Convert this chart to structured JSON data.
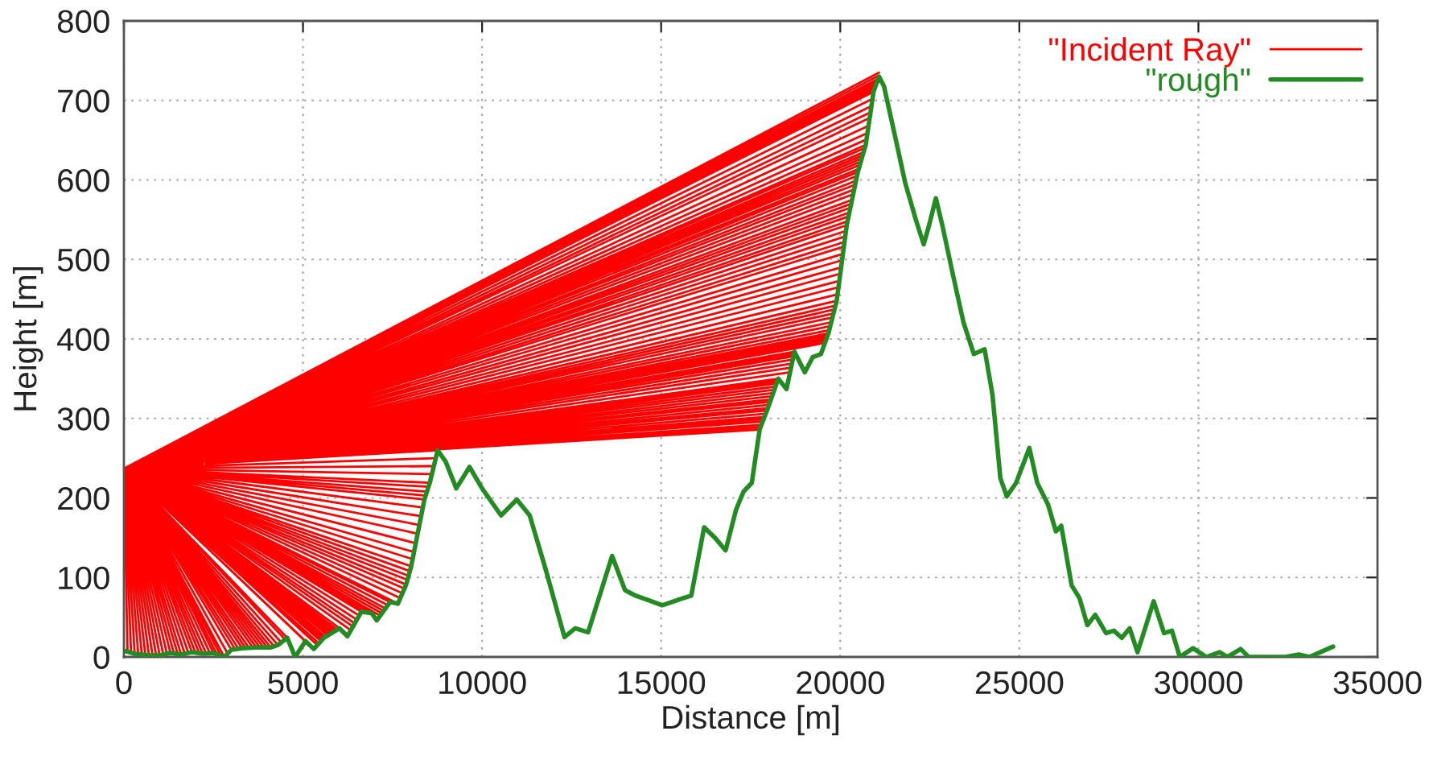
{
  "chart_data": {
    "type": "line",
    "xlabel": "Distance [m]",
    "ylabel": "Height [m]",
    "xlim": [
      0,
      35000
    ],
    "ylim": [
      0,
      800
    ],
    "xticks": [
      0,
      5000,
      10000,
      15000,
      20000,
      25000,
      30000,
      35000
    ],
    "yticks": [
      0,
      100,
      200,
      300,
      400,
      500,
      600,
      700,
      800
    ],
    "grid": true,
    "legend": "top right",
    "series": [
      {
        "name": "\"Incident Ray\"",
        "color": "#ff0000",
        "x": [
          0,
          100,
          0,
          200,
          0,
          300,
          0,
          400,
          0,
          500,
          0,
          600,
          0,
          700,
          0,
          800,
          0,
          900,
          0,
          1000,
          0,
          1100,
          0,
          1200,
          0,
          1300,
          0,
          1400,
          0,
          1500,
          0,
          1600,
          0,
          1700,
          0,
          1800,
          0,
          1900,
          0,
          2000,
          0,
          2100,
          0,
          2200,
          0,
          2300,
          0,
          2400,
          0,
          2500,
          0,
          2600,
          0,
          2700,
          0,
          2800,
          0,
          2900,
          0,
          3000,
          0,
          3100,
          0,
          3200,
          0,
          3300,
          0,
          3400,
          0,
          3500,
          0,
          3600,
          0,
          3700,
          0,
          3800,
          0,
          3900,
          0,
          4000,
          0,
          4100,
          0,
          4200,
          0,
          4300,
          0,
          4400,
          0,
          4500,
          0,
          4560,
          0,
          5070,
          0,
          5135,
          0,
          5200,
          0,
          5300,
          0,
          5400,
          0,
          5450,
          0,
          5500,
          0,
          5540,
          0,
          5580,
          0,
          5640,
          0,
          5700,
          0,
          5750,
          0,
          5800,
          0,
          5850,
          0,
          5900,
          0,
          5960,
          0,
          6020,
          0,
          6320,
          0,
          6400,
          0,
          6450,
          0,
          6500,
          0,
          6570,
          0,
          6630,
          0,
          6690,
          0,
          6750,
          0,
          6830,
          0,
          6920,
          0,
          7150,
          0,
          7200,
          0,
          7250,
          0,
          7300,
          0,
          7370,
          0,
          7430,
          0,
          7490,
          0,
          7550,
          0,
          7600,
          0,
          7650,
          0,
          7720,
          0,
          7780,
          0,
          7830,
          0,
          7880,
          0,
          7915,
          0,
          7950,
          0,
          7985,
          0,
          8020,
          0,
          8060,
          0,
          8100,
          0,
          8150,
          0,
          8200,
          0,
          8250,
          0,
          8300,
          0,
          8345,
          0,
          8390,
          0,
          8425,
          0,
          8460,
          0,
          8500,
          0,
          8540,
          0,
          8600,
          0,
          8650,
          0,
          8705,
          0,
          8760,
          0,
          17750,
          0,
          17775,
          0,
          17800,
          0,
          17830,
          0,
          17860,
          0,
          17890,
          0,
          17920,
          0,
          17950,
          0,
          17980,
          0,
          18010,
          0,
          18040,
          0,
          18070,
          0,
          18100,
          0,
          18130,
          0,
          18160,
          0,
          18190,
          0,
          18220,
          0,
          18245,
          0,
          18270,
          0,
          18600,
          0,
          18625,
          0,
          18650,
          0,
          18670,
          0,
          18690,
          0,
          18705,
          0,
          18720,
          0,
          19570,
          0,
          19595,
          0,
          19620,
          0,
          19645,
          0,
          19670,
          0,
          19695,
          0,
          19720,
          0,
          19750,
          0,
          19780,
          0,
          19810,
          0,
          19840,
          0,
          19870,
          0,
          19900,
          0,
          19925,
          0,
          19950,
          0,
          19975,
          0,
          20000,
          0,
          20025,
          0,
          20050,
          0,
          20075,
          0,
          20100,
          0,
          20120,
          0,
          20140,
          0,
          20160,
          0,
          20180,
          0,
          20205,
          0,
          20230,
          0,
          20255,
          0,
          20280,
          0,
          20305,
          0,
          20330,
          0,
          20360,
          0,
          20390,
          0,
          20415,
          0,
          20440,
          0,
          20465,
          0,
          20490,
          0,
          20520,
          0,
          20550,
          0,
          20575,
          0,
          20600,
          0,
          20625,
          0,
          20650,
          0,
          20680,
          0,
          20710,
          0,
          20735,
          0,
          20760,
          0,
          20790,
          0,
          20820,
          0,
          20845,
          0,
          20870,
          0,
          20900,
          0,
          20930,
          0,
          20950,
          0,
          20970,
          0,
          20990,
          0,
          21010,
          0,
          21030,
          0,
          21050,
          0,
          21065,
          0,
          21080
        ],
        "values": [
          237,
          7,
          237,
          5,
          237,
          4,
          237,
          3,
          237,
          3,
          237,
          2,
          237,
          2,
          237,
          2,
          237,
          2,
          237,
          2,
          237,
          3,
          237,
          4,
          237,
          5,
          237,
          4,
          237,
          4,
          237,
          3,
          237,
          4,
          237,
          5,
          237,
          6,
          237,
          5,
          237,
          5,
          237,
          4,
          237,
          4,
          237,
          5,
          237,
          5,
          237,
          3,
          237,
          2,
          237,
          0,
          237,
          4,
          237,
          9,
          237,
          10,
          237,
          10,
          237,
          11,
          237,
          11,
          237,
          11,
          237,
          12,
          237,
          12,
          237,
          12,
          237,
          12,
          237,
          12,
          237,
          12,
          237,
          13,
          237,
          15,
          237,
          18,
          237,
          22,
          237,
          24,
          237,
          20,
          237,
          17,
          237,
          14,
          237,
          10,
          237,
          15,
          237,
          17,
          237,
          20,
          237,
          22,
          237,
          24,
          237,
          25,
          237,
          27,
          237,
          28,
          237,
          30,
          237,
          31,
          237,
          33,
          237,
          34,
          237,
          36,
          237,
          34,
          237,
          38,
          237,
          42,
          237,
          47,
          237,
          52,
          237,
          57,
          237,
          57,
          237,
          56,
          237,
          56,
          237,
          55,
          237,
          52,
          237,
          55,
          237,
          58,
          237,
          61,
          237,
          65,
          237,
          69,
          237,
          68,
          237,
          68,
          237,
          67,
          237,
          67,
          237,
          74,
          237,
          80,
          237,
          86,
          237,
          91,
          237,
          97,
          237,
          102,
          237,
          108,
          237,
          114,
          237,
          123,
          237,
          132,
          237,
          143,
          237,
          155,
          237,
          166,
          237,
          177,
          237,
          188,
          237,
          198,
          237,
          203,
          237,
          208,
          237,
          214,
          237,
          219,
          237,
          230,
          237,
          240,
          237,
          250,
          237,
          260,
          237,
          286,
          237,
          289,
          237,
          292,
          237,
          296,
          237,
          299,
          237,
          302,
          237,
          306,
          237,
          310,
          237,
          313,
          237,
          317,
          237,
          321,
          237,
          324,
          237,
          328,
          237,
          332,
          237,
          336,
          237,
          340,
          237,
          344,
          237,
          347,
          237,
          350,
          237,
          358,
          237,
          364,
          237,
          369,
          237,
          374,
          237,
          378,
          237,
          381,
          237,
          384,
          237,
          395,
          237,
          398,
          237,
          401,
          237,
          404,
          237,
          407,
          237,
          411,
          237,
          416,
          237,
          421,
          237,
          427,
          237,
          432,
          237,
          437,
          237,
          442,
          237,
          448,
          237,
          456,
          237,
          465,
          237,
          473,
          237,
          482,
          237,
          490,
          237,
          499,
          237,
          507,
          237,
          516,
          237,
          522,
          237,
          529,
          237,
          536,
          237,
          543,
          237,
          548,
          237,
          554,
          237,
          559,
          237,
          565,
          237,
          570,
          237,
          575,
          237,
          582,
          237,
          588,
          237,
          594,
          237,
          599,
          237,
          605,
          237,
          610,
          237,
          614,
          237,
          619,
          237,
          623,
          237,
          627,
          237,
          631,
          237,
          635,
          237,
          640,
          237,
          644,
          237,
          651,
          237,
          659,
          237,
          668,
          237,
          678,
          237,
          685,
          237,
          693,
          237,
          702,
          237,
          711,
          237,
          714,
          237,
          717,
          237,
          720,
          237,
          723,
          237,
          725,
          237,
          727,
          237,
          731,
          237,
          735
        ]
      },
      {
        "name": "\"rough\"",
        "color": "#228b22",
        "x": [
          0,
          300,
          700,
          1000,
          1300,
          1600,
          1900,
          2200,
          2500,
          2800,
          3000,
          3300,
          3700,
          4100,
          4300,
          4560,
          4780,
          5070,
          5300,
          5580,
          6020,
          6240,
          6630,
          6920,
          7060,
          7430,
          7650,
          7880,
          8020,
          8390,
          8540,
          8760,
          8980,
          9280,
          9650,
          10000,
          10530,
          10970,
          11330,
          11770,
          12300,
          12600,
          12960,
          13630,
          13990,
          14290,
          14730,
          15030,
          15620,
          15840,
          16200,
          16500,
          16800,
          17090,
          17300,
          17530,
          17750,
          17980,
          18270,
          18500,
          18720,
          19010,
          19230,
          19460,
          19670,
          19900,
          20180,
          20490,
          20710,
          20930,
          21080,
          21220,
          21520,
          21810,
          22110,
          22330,
          22480,
          22670,
          22850,
          23140,
          23440,
          23730,
          24030,
          24250,
          24470,
          24650,
          24910,
          25280,
          25500,
          25800,
          26020,
          26170,
          26460,
          26680,
          26900,
          27120,
          27420,
          27640,
          27860,
          28080,
          28300,
          28750,
          29040,
          29260,
          29480,
          29850,
          30220,
          30590,
          30810,
          31180,
          31400,
          31770,
          32430,
          32800,
          33100,
          33760
        ],
        "values": [
          8,
          4,
          2,
          2,
          5,
          3,
          6,
          4,
          5,
          0,
          9,
          11,
          12,
          12,
          15,
          24,
          0,
          20,
          10,
          24,
          36,
          26,
          57,
          55,
          46,
          69,
          67,
          91,
          114,
          198,
          219,
          260,
          246,
          212,
          239,
          212,
          178,
          198,
          178,
          111,
          25,
          36,
          31,
          127,
          84,
          77,
          70,
          65,
          74,
          77,
          163,
          150,
          134,
          185,
          208,
          219,
          286,
          313,
          350,
          337,
          384,
          358,
          377,
          381,
          407,
          448,
          543,
          610,
          644,
          711,
          730,
          718,
          657,
          597,
          550,
          519,
          543,
          577,
          543,
          482,
          421,
          381,
          387,
          330,
          225,
          202,
          219,
          263,
          219,
          192,
          158,
          165,
          90,
          74,
          40,
          53,
          30,
          33,
          24,
          36,
          6,
          70,
          30,
          33,
          0,
          11,
          0,
          6,
          0,
          10,
          0,
          0,
          0,
          3,
          0,
          13
        ]
      }
    ]
  }
}
